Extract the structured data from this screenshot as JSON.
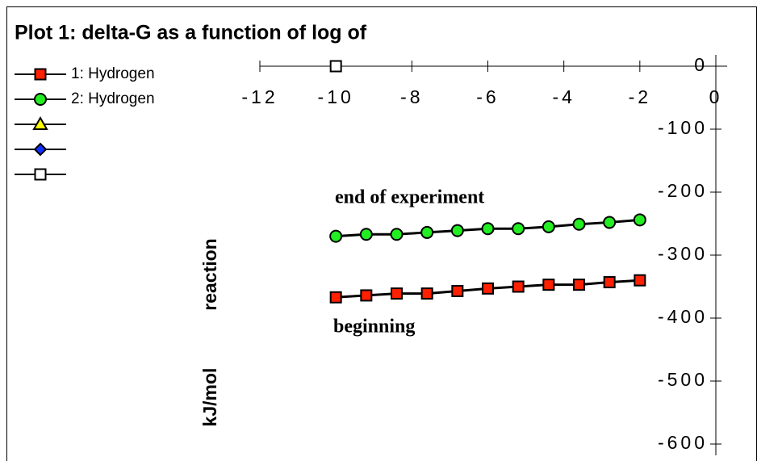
{
  "chart_data": {
    "type": "line",
    "title": "Plot 1: delta-G as a function of log of",
    "y_label_parts": [
      "reaction",
      "kJ/mol"
    ],
    "annotations": [
      "end of experiment",
      "beginning"
    ],
    "x": [
      -10,
      -9.2,
      -8.4,
      -7.6,
      -6.8,
      -6,
      -5.2,
      -4.4,
      -3.6,
      -2.8,
      -2
    ],
    "series": [
      {
        "name": "1: Hydrogen",
        "color": "#ff2000",
        "marker": "square",
        "values": [
          -367,
          -364,
          -361,
          -361,
          -357,
          -353,
          -350,
          -347,
          -347,
          -343,
          -340
        ]
      },
      {
        "name": "2: Hydrogen",
        "color": "#22ee22",
        "marker": "circle",
        "values": [
          -270,
          -267,
          -267,
          -264,
          -261,
          -258,
          -258,
          -255,
          -251,
          -248,
          -244
        ]
      },
      {
        "color": "#ffff00",
        "marker": "triangle",
        "values": [
          null,
          null,
          null,
          null,
          null,
          null,
          null,
          null,
          null,
          null,
          null
        ]
      },
      {
        "color": "#1030ff",
        "marker": "diamond",
        "values": [
          null,
          null,
          null,
          null,
          null,
          null,
          null,
          null,
          null,
          null,
          null
        ]
      },
      {
        "color": "#ffffff",
        "marker": "square",
        "values": [
          0,
          null,
          null,
          null,
          null,
          null,
          null,
          null,
          null,
          null,
          null
        ]
      }
    ],
    "xlim": [
      -12,
      0
    ],
    "xticks": [
      -12,
      -10,
      -8,
      -6,
      -4,
      -2,
      0
    ],
    "ylim": [
      -600,
      0
    ],
    "yticks": [
      0,
      -100,
      -200,
      -300,
      -400,
      -500,
      -600
    ]
  }
}
